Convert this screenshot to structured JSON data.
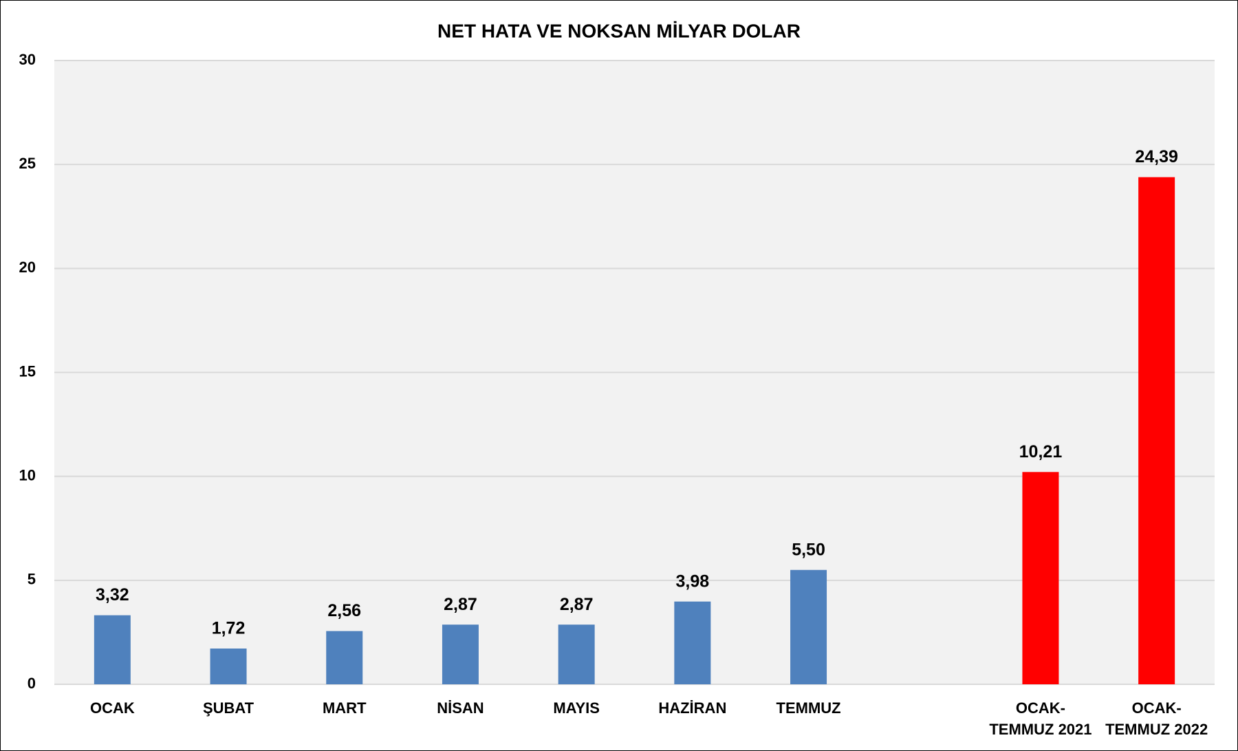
{
  "chart_data": {
    "type": "bar",
    "title": "NET HATA VE NOKSAN MİLYAR DOLAR",
    "categories": [
      "OCAK",
      "ŞUBAT",
      "MART",
      "NİSAN",
      "MAYIS",
      "HAZİRAN",
      "TEMMUZ",
      null,
      "OCAK-\nTEMMUZ 2021",
      "OCAK-\nTEMMUZ 2022"
    ],
    "values": [
      3.32,
      1.72,
      2.56,
      2.87,
      2.87,
      3.98,
      5.5,
      null,
      10.21,
      24.39
    ],
    "value_labels": [
      "3,32",
      "1,72",
      "2,56",
      "2,87",
      "2,87",
      "3,98",
      "5,50",
      null,
      "10,21",
      "24,39"
    ],
    "colors": [
      "#4f81bd",
      "#4f81bd",
      "#4f81bd",
      "#4f81bd",
      "#4f81bd",
      "#4f81bd",
      "#4f81bd",
      null,
      "#ff0000",
      "#ff0000"
    ],
    "ylim": [
      0,
      30
    ],
    "yticks": [
      0,
      5,
      10,
      15,
      20,
      25,
      30
    ],
    "grid": true
  }
}
